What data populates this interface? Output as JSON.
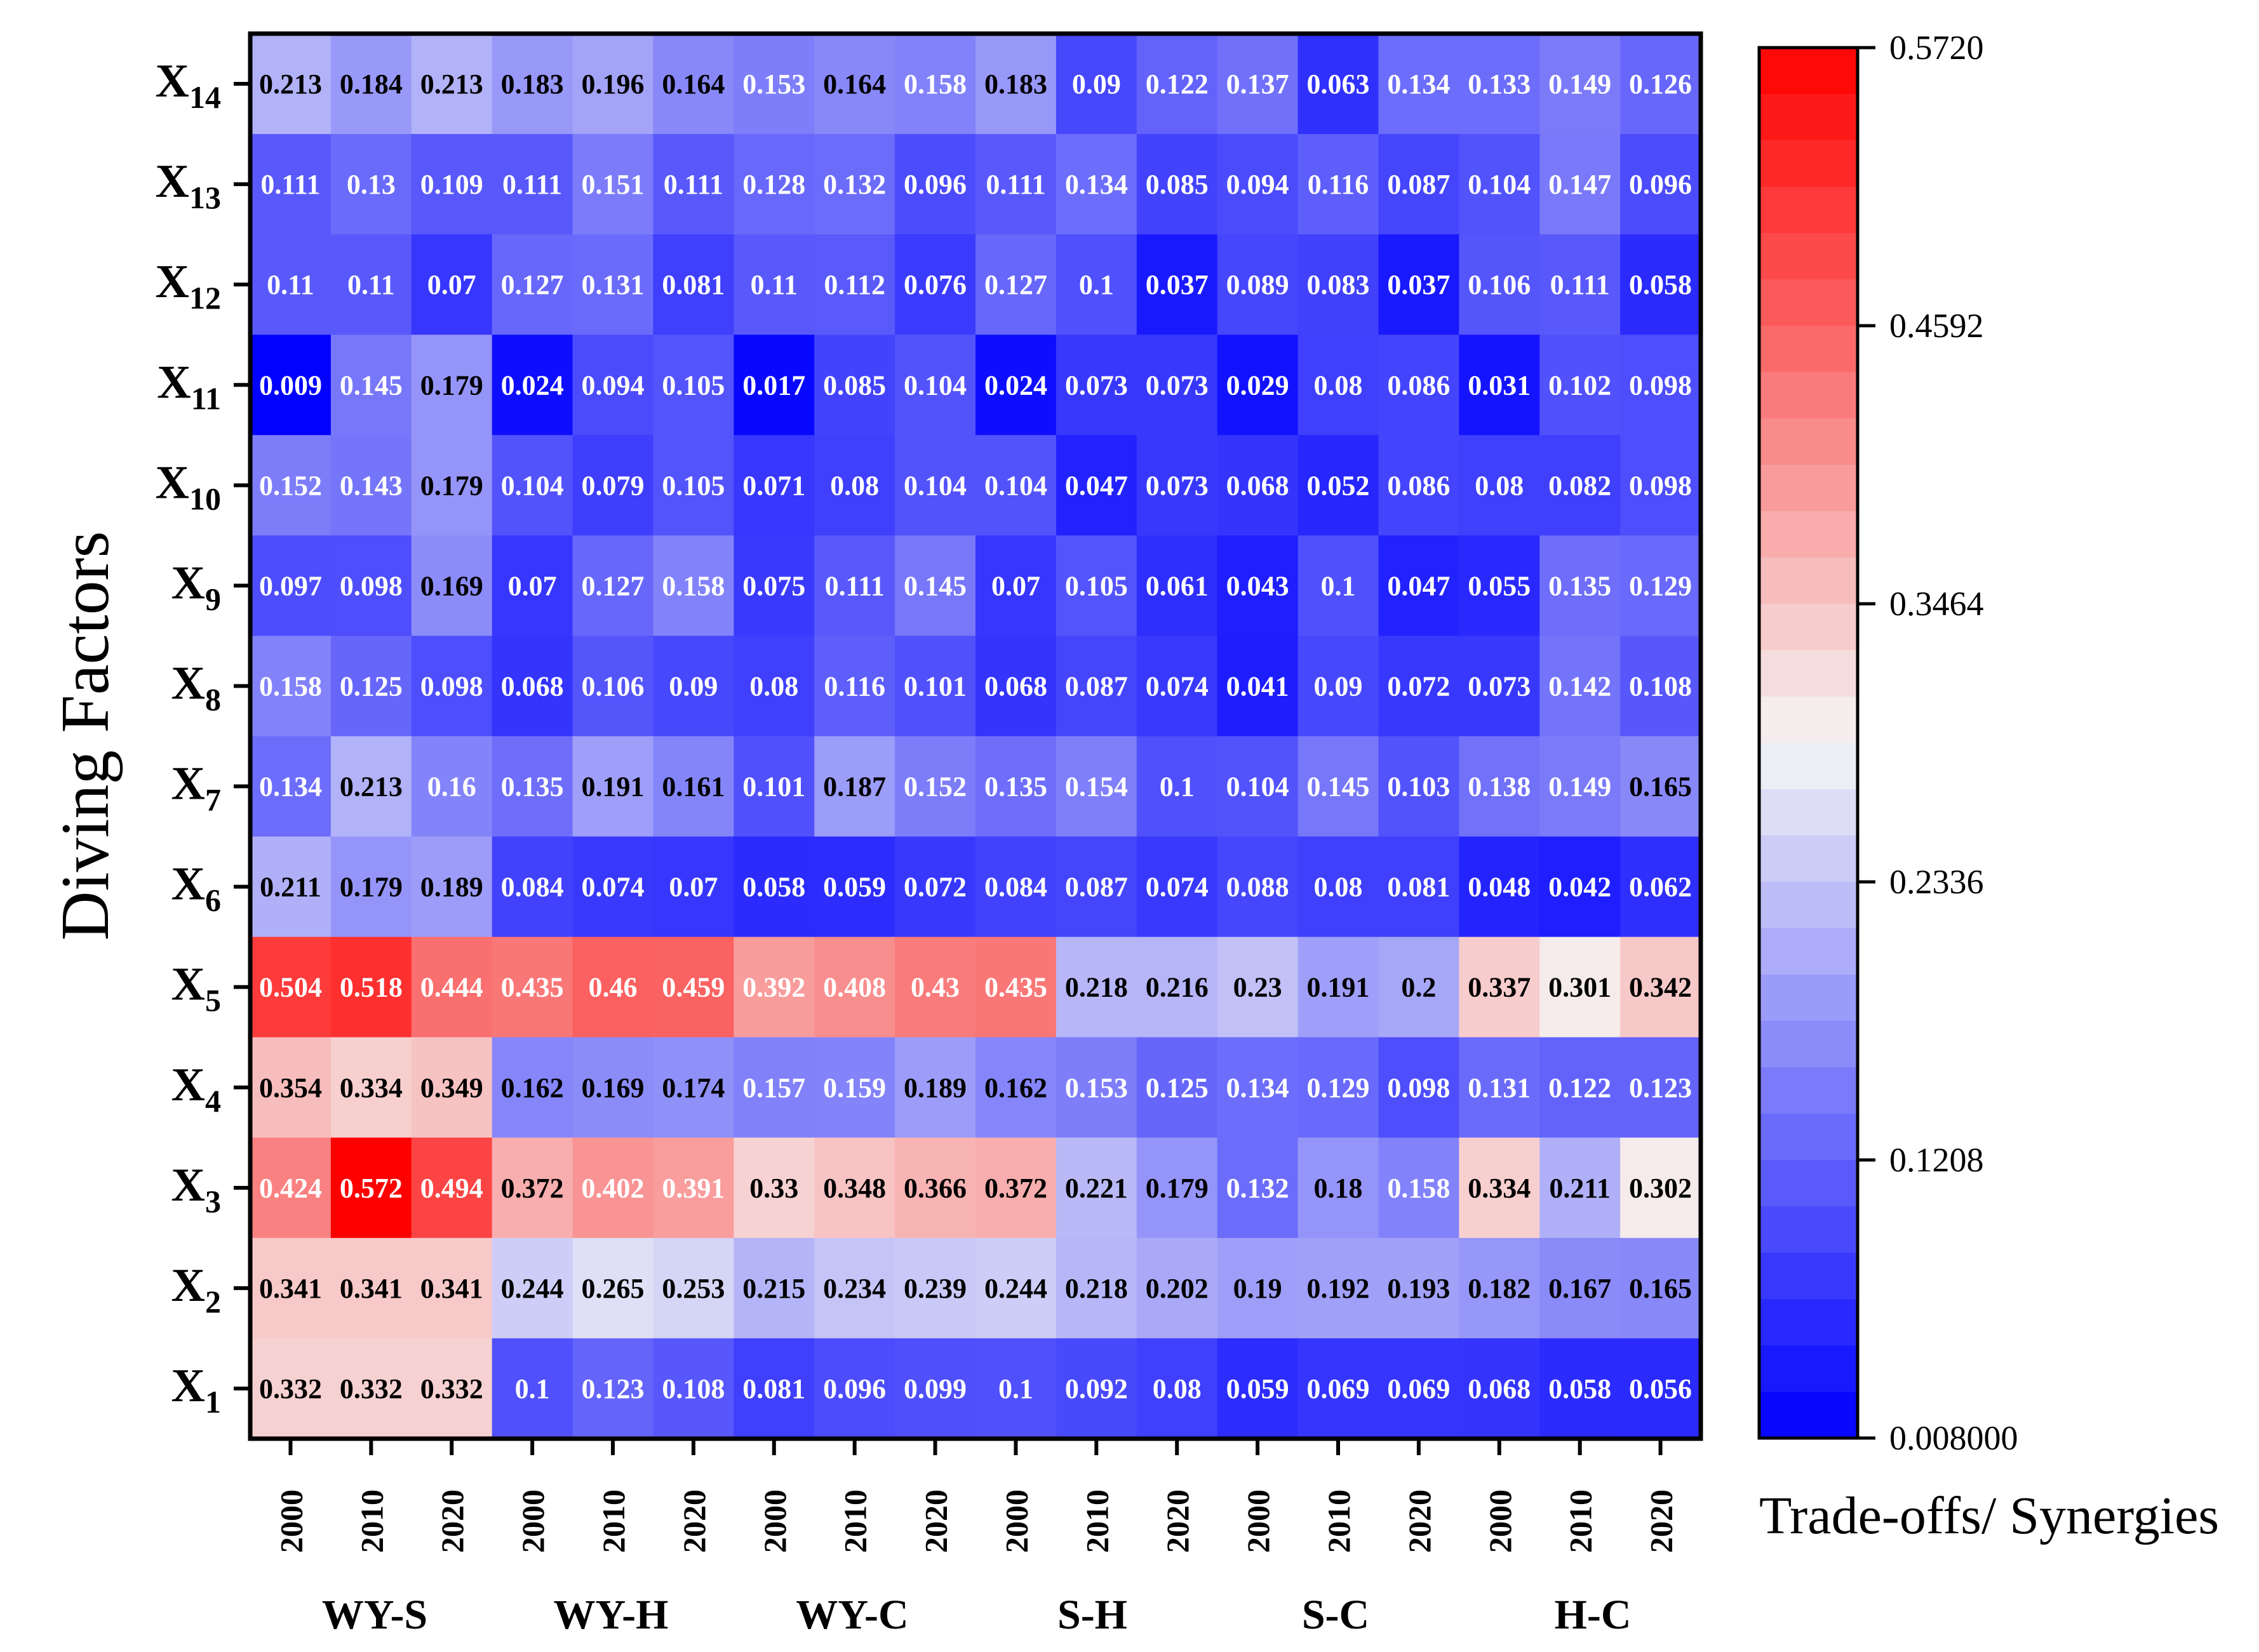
{
  "chart_data": {
    "type": "heatmap",
    "ylabel": "Diving Factors",
    "colorbar_title": "Trade-offs/ Synergies",
    "colorbar_ticks": [
      "0.5720",
      "0.4592",
      "0.3464",
      "0.2336",
      "0.1208",
      "0.008000"
    ],
    "color_range": [
      0.008,
      0.572
    ],
    "colors": {
      "low": "#0000ff",
      "mid": "#f5f5f5",
      "high": "#ff0000"
    },
    "mid_value": 0.29,
    "columns": [
      "2000",
      "2010",
      "2020",
      "2000",
      "2010",
      "2020",
      "2000",
      "2010",
      "2020",
      "2000",
      "2010",
      "2020",
      "2000",
      "2010",
      "2020",
      "2000",
      "2010",
      "2020"
    ],
    "groups": [
      "WY-S",
      "WY-H",
      "WY-C",
      "S-H",
      "S-C",
      "H-C"
    ],
    "rows": [
      {
        "base": "X",
        "sub": "14",
        "values": [
          0.213,
          0.184,
          0.213,
          0.183,
          0.196,
          0.164,
          0.153,
          0.164,
          0.158,
          0.183,
          0.09,
          0.122,
          0.137,
          0.063,
          0.134,
          0.133,
          0.149,
          0.126
        ],
        "labels": [
          "0.213",
          "0.184",
          "0.213",
          "0.183",
          "0.196",
          "0.164",
          "0.153",
          "0.164",
          "0.158",
          "0.183",
          "0.09",
          "0.122",
          "0.137",
          "0.063",
          "0.134",
          "0.133",
          "0.149",
          "0.126"
        ]
      },
      {
        "base": "X",
        "sub": "13",
        "values": [
          0.111,
          0.13,
          0.109,
          0.111,
          0.151,
          0.111,
          0.128,
          0.132,
          0.096,
          0.111,
          0.134,
          0.085,
          0.094,
          0.116,
          0.087,
          0.104,
          0.147,
          0.096
        ],
        "labels": [
          "0.111",
          "0.13",
          "0.109",
          "0.111",
          "0.151",
          "0.111",
          "0.128",
          "0.132",
          "0.096",
          "0.111",
          "0.134",
          "0.085",
          "0.094",
          "0.116",
          "0.087",
          "0.104",
          "0.147",
          "0.096"
        ]
      },
      {
        "base": "X",
        "sub": "12",
        "values": [
          0.11,
          0.11,
          0.07,
          0.127,
          0.131,
          0.081,
          0.11,
          0.112,
          0.076,
          0.127,
          0.1,
          0.037,
          0.089,
          0.083,
          0.037,
          0.106,
          0.111,
          0.058
        ],
        "labels": [
          "0.11",
          "0.11",
          "0.07",
          "0.127",
          "0.131",
          "0.081",
          "0.11",
          "0.112",
          "0.076",
          "0.127",
          "0.1",
          "0.037",
          "0.089",
          "0.083",
          "0.037",
          "0.106",
          "0.111",
          "0.058"
        ]
      },
      {
        "base": "X",
        "sub": "11",
        "values": [
          0.009,
          0.145,
          0.179,
          0.024,
          0.094,
          0.105,
          0.017,
          0.085,
          0.104,
          0.024,
          0.073,
          0.073,
          0.029,
          0.08,
          0.086,
          0.031,
          0.102,
          0.098
        ],
        "labels": [
          "0.009",
          "0.145",
          "0.179",
          "0.024",
          "0.094",
          "0.105",
          "0.017",
          "0.085",
          "0.104",
          "0.024",
          "0.073",
          "0.073",
          "0.029",
          "0.08",
          "0.086",
          "0.031",
          "0.102",
          "0.098"
        ]
      },
      {
        "base": "X",
        "sub": "10",
        "values": [
          0.152,
          0.143,
          0.179,
          0.104,
          0.079,
          0.105,
          0.071,
          0.08,
          0.104,
          0.104,
          0.047,
          0.073,
          0.068,
          0.052,
          0.086,
          0.08,
          0.082,
          0.098
        ],
        "labels": [
          "0.152",
          "0.143",
          "0.179",
          "0.104",
          "0.079",
          "0.105",
          "0.071",
          "0.08",
          "0.104",
          "0.104",
          "0.047",
          "0.073",
          "0.068",
          "0.052",
          "0.086",
          "0.08",
          "0.082",
          "0.098"
        ]
      },
      {
        "base": "X",
        "sub": "9",
        "values": [
          0.097,
          0.098,
          0.169,
          0.07,
          0.127,
          0.158,
          0.075,
          0.111,
          0.145,
          0.07,
          0.105,
          0.061,
          0.043,
          0.1,
          0.047,
          0.055,
          0.135,
          0.129
        ],
        "labels": [
          "0.097",
          "0.098",
          "0.169",
          "0.07",
          "0.127",
          "0.158",
          "0.075",
          "0.111",
          "0.145",
          "0.07",
          "0.105",
          "0.061",
          "0.043",
          "0.1",
          "0.047",
          "0.055",
          "0.135",
          "0.129"
        ]
      },
      {
        "base": "X",
        "sub": "8",
        "values": [
          0.158,
          0.125,
          0.098,
          0.068,
          0.106,
          0.09,
          0.08,
          0.116,
          0.101,
          0.068,
          0.087,
          0.074,
          0.041,
          0.09,
          0.072,
          0.073,
          0.142,
          0.108
        ],
        "labels": [
          "0.158",
          "0.125",
          "0.098",
          "0.068",
          "0.106",
          "0.09",
          "0.08",
          "0.116",
          "0.101",
          "0.068",
          "0.087",
          "0.074",
          "0.041",
          "0.09",
          "0.072",
          "0.073",
          "0.142",
          "0.108"
        ]
      },
      {
        "base": "X",
        "sub": "7",
        "values": [
          0.134,
          0.213,
          0.16,
          0.135,
          0.191,
          0.161,
          0.101,
          0.187,
          0.152,
          0.135,
          0.154,
          0.1,
          0.104,
          0.145,
          0.103,
          0.138,
          0.149,
          0.165
        ],
        "labels": [
          "0.134",
          "0.213",
          "0.16",
          "0.135",
          "0.191",
          "0.161",
          "0.101",
          "0.187",
          "0.152",
          "0.135",
          "0.154",
          "0.1",
          "0.104",
          "0.145",
          "0.103",
          "0.138",
          "0.149",
          "0.165"
        ]
      },
      {
        "base": "X",
        "sub": "6",
        "values": [
          0.211,
          0.179,
          0.189,
          0.084,
          0.074,
          0.07,
          0.058,
          0.059,
          0.072,
          0.084,
          0.087,
          0.074,
          0.088,
          0.08,
          0.081,
          0.048,
          0.042,
          0.062
        ],
        "labels": [
          "0.211",
          "0.179",
          "0.189",
          "0.084",
          "0.074",
          "0.07",
          "0.058",
          "0.059",
          "0.072",
          "0.084",
          "0.087",
          "0.074",
          "0.088",
          "0.08",
          "0.081",
          "0.048",
          "0.042",
          "0.062"
        ]
      },
      {
        "base": "X",
        "sub": "5",
        "values": [
          0.504,
          0.518,
          0.444,
          0.435,
          0.46,
          0.459,
          0.392,
          0.408,
          0.43,
          0.435,
          0.218,
          0.216,
          0.23,
          0.191,
          0.2,
          0.337,
          0.301,
          0.342
        ],
        "labels": [
          "0.504",
          "0.518",
          "0.444",
          "0.435",
          "0.46",
          "0.459",
          "0.392",
          "0.408",
          "0.43",
          "0.435",
          "0.218",
          "0.216",
          "0.23",
          "0.191",
          "0.2",
          "0.337",
          "0.301",
          "0.342"
        ]
      },
      {
        "base": "X",
        "sub": "4",
        "values": [
          0.354,
          0.334,
          0.349,
          0.162,
          0.169,
          0.174,
          0.157,
          0.159,
          0.189,
          0.162,
          0.153,
          0.125,
          0.134,
          0.129,
          0.098,
          0.131,
          0.122,
          0.123
        ],
        "labels": [
          "0.354",
          "0.334",
          "0.349",
          "0.162",
          "0.169",
          "0.174",
          "0.157",
          "0.159",
          "0.189",
          "0.162",
          "0.153",
          "0.125",
          "0.134",
          "0.129",
          "0.098",
          "0.131",
          "0.122",
          "0.123"
        ]
      },
      {
        "base": "X",
        "sub": "3",
        "values": [
          0.424,
          0.572,
          0.494,
          0.372,
          0.402,
          0.391,
          0.33,
          0.348,
          0.366,
          0.372,
          0.221,
          0.179,
          0.132,
          0.18,
          0.158,
          0.334,
          0.211,
          0.302
        ],
        "labels": [
          "0.424",
          "0.572",
          "0.494",
          "0.372",
          "0.402",
          "0.391",
          "0.33",
          "0.348",
          "0.366",
          "0.372",
          "0.221",
          "0.179",
          "0.132",
          "0.18",
          "0.158",
          "0.334",
          "0.211",
          "0.302"
        ]
      },
      {
        "base": "X",
        "sub": "2",
        "values": [
          0.341,
          0.341,
          0.341,
          0.244,
          0.265,
          0.253,
          0.215,
          0.234,
          0.239,
          0.244,
          0.218,
          0.202,
          0.19,
          0.192,
          0.193,
          0.182,
          0.167,
          0.165
        ],
        "labels": [
          "0.341",
          "0.341",
          "0.341",
          "0.244",
          "0.265",
          "0.253",
          "0.215",
          "0.234",
          "0.239",
          "0.244",
          "0.218",
          "0.202",
          "0.19",
          "0.192",
          "0.193",
          "0.182",
          "0.167",
          "0.165"
        ]
      },
      {
        "base": "X",
        "sub": "1",
        "values": [
          0.332,
          0.332,
          0.332,
          0.1,
          0.123,
          0.108,
          0.081,
          0.096,
          0.099,
          0.1,
          0.092,
          0.08,
          0.059,
          0.069,
          0.069,
          0.068,
          0.058,
          0.056
        ],
        "labels": [
          "0.332",
          "0.332",
          "0.332",
          "0.1",
          "0.123",
          "0.108",
          "0.081",
          "0.096",
          "0.099",
          "0.1",
          "0.092",
          "0.08",
          "0.059",
          "0.069",
          "0.069",
          "0.068",
          "0.058",
          "0.056"
        ]
      }
    ]
  }
}
